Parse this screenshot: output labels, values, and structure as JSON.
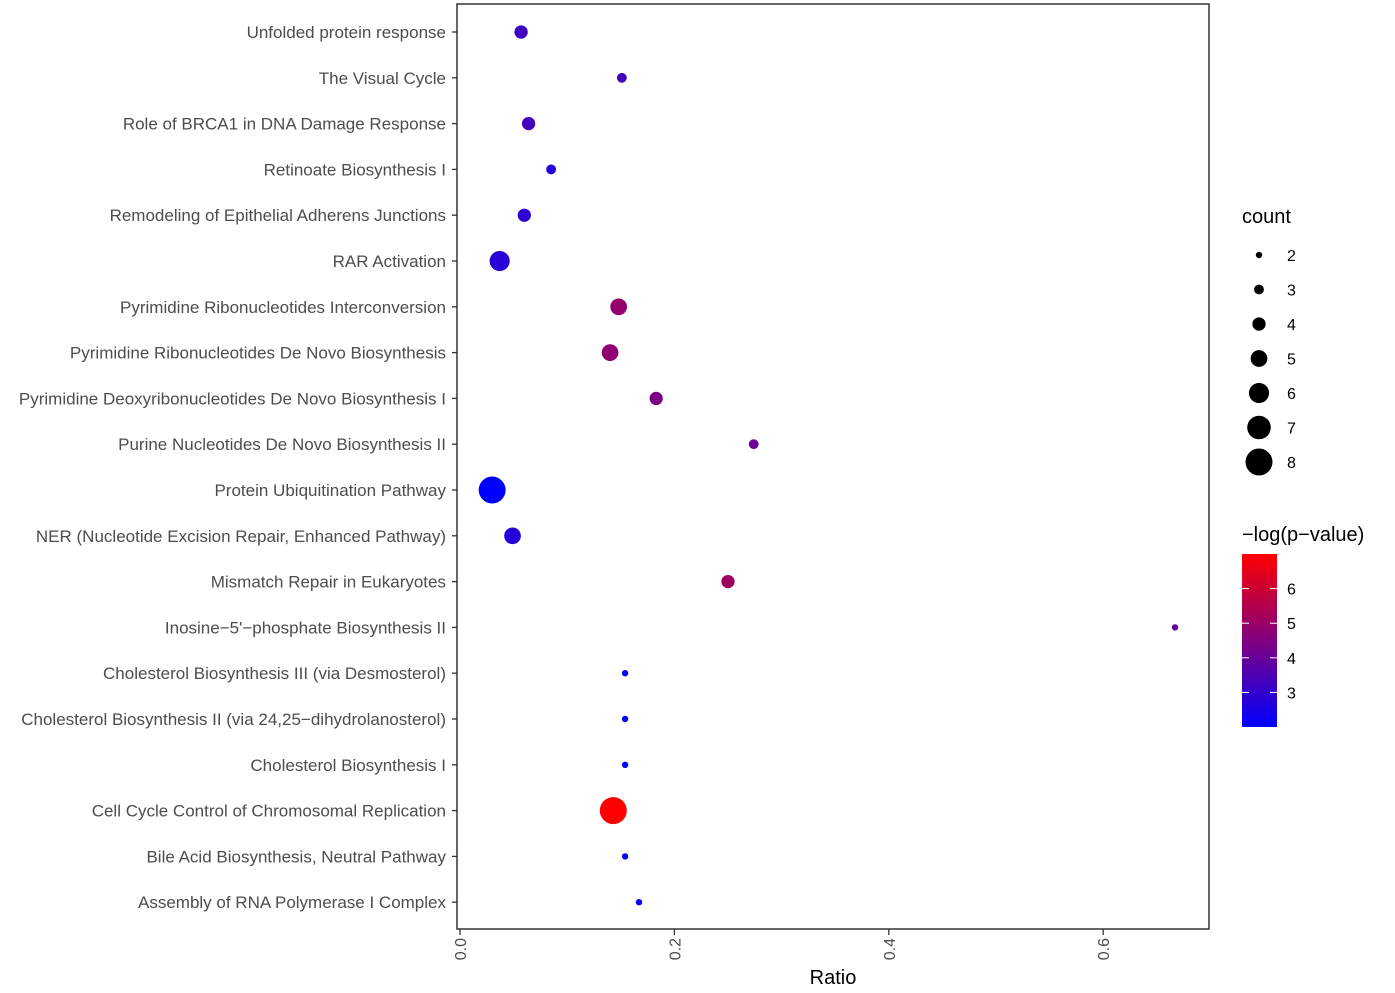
{
  "chart_data": {
    "type": "scatter",
    "xlabel": "Ratio",
    "ylabel": "",
    "xlim": [
      0,
      0.7
    ],
    "x_ticks": [
      "0.0",
      "0.2",
      "0.4",
      "0.6"
    ],
    "x_tick_values": [
      0,
      0.2,
      0.4,
      0.6
    ],
    "grid": false,
    "categories": [
      "Unfolded protein response",
      "The Visual Cycle",
      "Role of BRCA1 in DNA Damage Response",
      "Retinoate Biosynthesis I",
      "Remodeling of Epithelial Adherens Junctions",
      "RAR Activation",
      "Pyrimidine Ribonucleotides Interconversion",
      "Pyrimidine Ribonucleotides De Novo Biosynthesis",
      "Pyrimidine Deoxyribonucleotides De Novo Biosynthesis I",
      "Purine Nucleotides De Novo Biosynthesis II",
      "Protein Ubiquitination Pathway",
      "NER (Nucleotide Excision Repair, Enhanced Pathway)",
      "Mismatch Repair in Eukaryotes",
      "Inosine−5'−phosphate Biosynthesis II",
      "Cholesterol Biosynthesis III (via Desmosterol)",
      "Cholesterol Biosynthesis II (via 24,25−dihydrolanosterol)",
      "Cholesterol Biosynthesis I",
      "Cell Cycle Control of Chromosomal Replication",
      "Bile Acid Biosynthesis, Neutral Pathway",
      "Assembly of RNA Polymerase I Complex"
    ],
    "points": [
      {
        "ratio": 0.057,
        "count": 4,
        "neglogp": 3.2
      },
      {
        "ratio": 0.151,
        "count": 3,
        "neglogp": 3.3
      },
      {
        "ratio": 0.064,
        "count": 4,
        "neglogp": 3.3
      },
      {
        "ratio": 0.085,
        "count": 3,
        "neglogp": 2.6
      },
      {
        "ratio": 0.06,
        "count": 4,
        "neglogp": 2.9
      },
      {
        "ratio": 0.037,
        "count": 6,
        "neglogp": 2.8
      },
      {
        "ratio": 0.148,
        "count": 5,
        "neglogp": 4.9
      },
      {
        "ratio": 0.14,
        "count": 5,
        "neglogp": 4.8
      },
      {
        "ratio": 0.183,
        "count": 4,
        "neglogp": 4.4
      },
      {
        "ratio": 0.274,
        "count": 3,
        "neglogp": 4.1
      },
      {
        "ratio": 0.03,
        "count": 8,
        "neglogp": 2.0
      },
      {
        "ratio": 0.049,
        "count": 5,
        "neglogp": 2.7
      },
      {
        "ratio": 0.25,
        "count": 4,
        "neglogp": 5.1
      },
      {
        "ratio": 0.667,
        "count": 2,
        "neglogp": 3.9
      },
      {
        "ratio": 0.154,
        "count": 2,
        "neglogp": 2.1
      },
      {
        "ratio": 0.154,
        "count": 2,
        "neglogp": 2.1
      },
      {
        "ratio": 0.154,
        "count": 2,
        "neglogp": 2.1
      },
      {
        "ratio": 0.143,
        "count": 8,
        "neglogp": 7.0
      },
      {
        "ratio": 0.154,
        "count": 2,
        "neglogp": 2.1
      },
      {
        "ratio": 0.167,
        "count": 2,
        "neglogp": 2.3
      }
    ],
    "size_legend": {
      "title": "count",
      "values": [
        2,
        3,
        4,
        5,
        6,
        7,
        8
      ],
      "labels": [
        "2",
        "3",
        "4",
        "5",
        "6",
        "7",
        "8"
      ]
    },
    "color_legend": {
      "title": "−log(p−value)",
      "low_color": "#0000ff",
      "high_color": "#ff0000",
      "min": 2.0,
      "max": 7.0,
      "ticks": [
        3,
        4,
        5,
        6
      ],
      "tick_labels": [
        "3",
        "4",
        "5",
        "6"
      ]
    },
    "legend_position": "right"
  }
}
